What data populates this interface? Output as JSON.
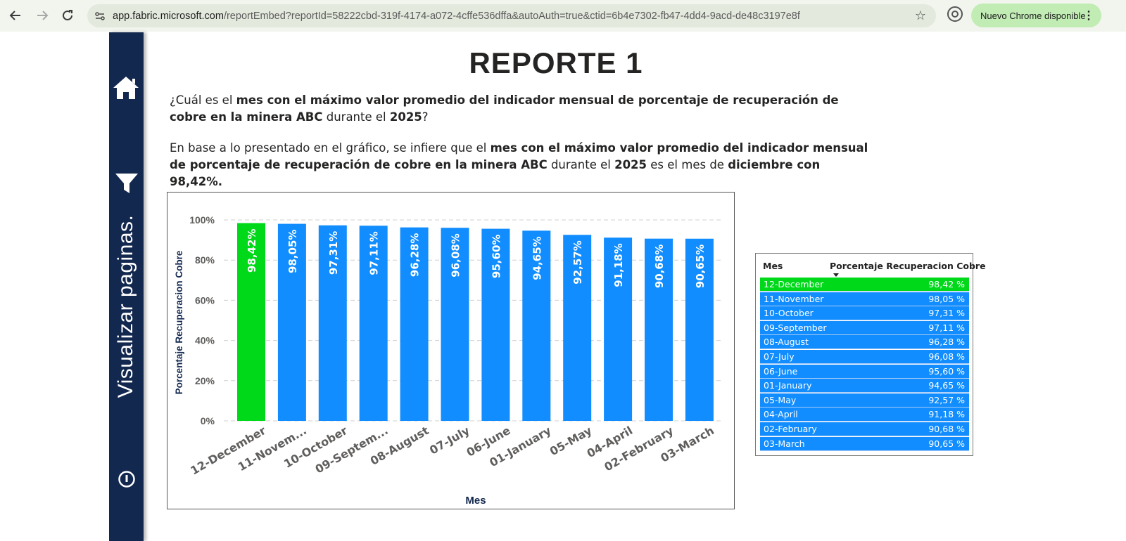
{
  "browser": {
    "url_host": "app.fabric.microsoft.com",
    "url_path": "/reportEmbed?reportId=58222cbd-319f-4174-a072-4cffe536dffa&autoAuth=true&ctid=6b4e7302-fb47-4dd4-9acd-de48c3197e8f",
    "update_label": "Nuevo Chrome disponible"
  },
  "sidebar": {
    "label": "Visualizar paginas."
  },
  "report": {
    "title": "REPORTE 1",
    "q_1": "¿Cuál es el ",
    "q_2": "mes con el máximo valor promedio del indicador mensual de porcentaje de recuperación de cobre en la minera ABC",
    "q_3": " durante el ",
    "q_4": "2025",
    "q_5": "?",
    "a_1": "En base a lo presentado en el gráfico, se infiere que el ",
    "a_2": "mes con el máximo valor promedio del indicador mensual de porcentaje de recuperación de cobre en la minera ABC",
    "a_3": " durante el ",
    "a_4": "2025",
    "a_5": " es el mes de ",
    "a_6": "diciembre con 98,42%."
  },
  "colors": {
    "highlight": "#00d91a",
    "bar": "#118dff",
    "axis_title": "#13284f"
  },
  "chart_data": {
    "type": "bar",
    "title": "",
    "xlabel": "Mes",
    "ylabel": "Porcentaje Recuperacion Cobre",
    "ylim": [
      0,
      100
    ],
    "yticks": [
      "0%",
      "20%",
      "40%",
      "60%",
      "80%",
      "100%"
    ],
    "tick_values": [
      0,
      20,
      40,
      60,
      80,
      100
    ],
    "categories": [
      "12-December",
      "11-Novem...",
      "10-October",
      "09-Septem...",
      "08-August",
      "07-July",
      "06-June",
      "01-January",
      "05-May",
      "04-April",
      "02-February",
      "03-March"
    ],
    "values": [
      98.42,
      98.05,
      97.31,
      97.11,
      96.28,
      96.08,
      95.6,
      94.65,
      92.57,
      91.18,
      90.68,
      90.65
    ],
    "data_labels": [
      "98,42%",
      "98,05%",
      "97,31%",
      "97,11%",
      "96,28%",
      "96,08%",
      "95,60%",
      "94,65%",
      "92,57%",
      "91,18%",
      "90,68%",
      "90,65%"
    ],
    "highlight_index": 0,
    "grid": true
  },
  "table": {
    "col_mes": "Mes",
    "col_pct": "Porcentaje Recuperacion Cobre",
    "rows": [
      {
        "mes": "12-December",
        "pct": "98,42 %"
      },
      {
        "mes": "11-November",
        "pct": "98,05 %"
      },
      {
        "mes": "10-October",
        "pct": "97,31 %"
      },
      {
        "mes": "09-September",
        "pct": "97,11 %"
      },
      {
        "mes": "08-August",
        "pct": "96,28 %"
      },
      {
        "mes": "07-July",
        "pct": "96,08 %"
      },
      {
        "mes": "06-June",
        "pct": "95,60 %"
      },
      {
        "mes": "01-January",
        "pct": "94,65 %"
      },
      {
        "mes": "05-May",
        "pct": "92,57 %"
      },
      {
        "mes": "04-April",
        "pct": "91,18 %"
      },
      {
        "mes": "02-February",
        "pct": "90,68 %"
      },
      {
        "mes": "03-March",
        "pct": "90,65 %"
      }
    ]
  }
}
